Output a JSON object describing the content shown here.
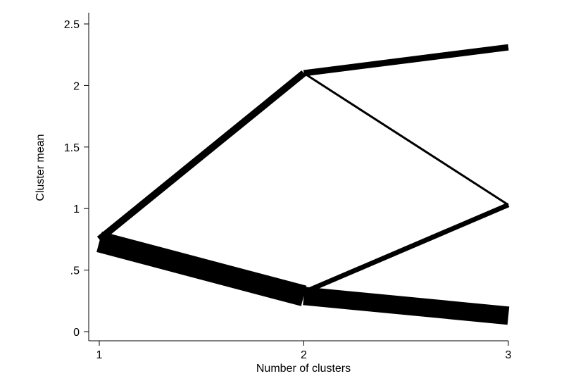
{
  "chart_data": {
    "type": "line",
    "title": "",
    "xlabel": "Number of clusters",
    "ylabel": "Cluster mean",
    "xlim": [
      1,
      3
    ],
    "ylim": [
      0,
      2.5
    ],
    "x_ticks": [
      {
        "value": 1,
        "label": "1"
      },
      {
        "value": 2,
        "label": "2"
      },
      {
        "value": 3,
        "label": "3"
      }
    ],
    "y_ticks": [
      {
        "value": 0,
        "label": "0"
      },
      {
        "value": 0.5,
        "label": ".5"
      },
      {
        "value": 1,
        "label": "1"
      },
      {
        "value": 1.5,
        "label": "1.5"
      },
      {
        "value": 2,
        "label": "2"
      },
      {
        "value": 2.5,
        "label": "2.5"
      }
    ],
    "grid": false,
    "legend": "none",
    "line_color": "#000000",
    "nodes": [
      {
        "k": 1,
        "mean": 0.74
      },
      {
        "k": 2,
        "mean": 2.1
      },
      {
        "k": 2,
        "mean": 0.29
      },
      {
        "k": 3,
        "mean": 2.31
      },
      {
        "k": 3,
        "mean": 1.03
      },
      {
        "k": 3,
        "mean": 0.13
      }
    ],
    "segments": [
      {
        "from": [
          1,
          0.75
        ],
        "to": [
          2,
          2.1
        ],
        "weight": 10
      },
      {
        "from": [
          1,
          0.73
        ],
        "to": [
          2,
          0.29
        ],
        "weight": 30
      },
      {
        "from": [
          2,
          2.1
        ],
        "to": [
          3,
          2.31
        ],
        "weight": 9
      },
      {
        "from": [
          2,
          2.1
        ],
        "to": [
          3,
          1.03
        ],
        "weight": 3
      },
      {
        "from": [
          2,
          0.32
        ],
        "to": [
          3,
          1.03
        ],
        "weight": 7
      },
      {
        "from": [
          2,
          0.29
        ],
        "to": [
          3,
          0.13
        ],
        "weight": 26
      }
    ]
  }
}
